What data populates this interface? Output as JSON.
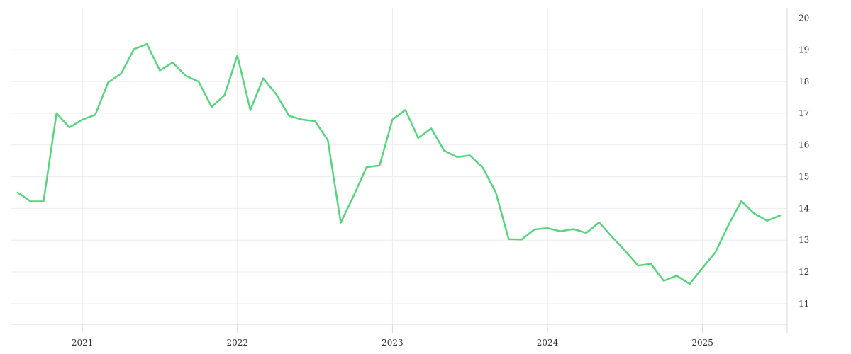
{
  "chart_data": {
    "type": "line",
    "title": "",
    "xlabel": "",
    "ylabel": "",
    "x_ticks": [
      "2021",
      "2022",
      "2023",
      "2024",
      "2025"
    ],
    "y_ticks": [
      11,
      12,
      13,
      14,
      15,
      16,
      17,
      18,
      19,
      20
    ],
    "xlim": [
      "2020-08",
      "2025-07"
    ],
    "ylim": [
      10.35,
      20.3
    ],
    "grid": true,
    "legend": "none",
    "y_axis_side": "right",
    "series": [
      {
        "color": "#55d67c",
        "x": [
          "2020-08",
          "2020-09",
          "2020-10",
          "2020-11",
          "2020-12",
          "2021-01",
          "2021-02",
          "2021-03",
          "2021-04",
          "2021-05",
          "2021-06",
          "2021-07",
          "2021-08",
          "2021-09",
          "2021-10",
          "2021-11",
          "2021-12",
          "2022-01",
          "2022-02",
          "2022-03",
          "2022-04",
          "2022-05",
          "2022-06",
          "2022-07",
          "2022-08",
          "2022-09",
          "2022-10",
          "2022-11",
          "2022-12",
          "2023-01",
          "2023-02",
          "2023-03",
          "2023-04",
          "2023-05",
          "2023-06",
          "2023-07",
          "2023-08",
          "2023-09",
          "2023-10",
          "2023-11",
          "2023-12",
          "2024-01",
          "2024-02",
          "2024-03",
          "2024-04",
          "2024-05",
          "2024-06",
          "2024-07",
          "2024-08",
          "2024-09",
          "2024-10",
          "2024-11",
          "2024-12",
          "2025-01",
          "2025-02",
          "2025-03",
          "2025-04",
          "2025-05",
          "2025-06",
          "2025-07"
        ],
        "y": [
          14.5,
          14.22,
          14.22,
          17.0,
          16.55,
          16.8,
          16.95,
          17.97,
          18.25,
          19.02,
          19.18,
          18.35,
          18.6,
          18.18,
          18.0,
          17.2,
          17.56,
          18.82,
          17.1,
          18.1,
          17.6,
          16.92,
          16.8,
          16.75,
          16.15,
          13.55,
          14.4,
          15.3,
          15.35,
          16.8,
          17.1,
          16.22,
          16.52,
          15.82,
          15.62,
          15.67,
          15.28,
          14.5,
          13.03,
          13.02,
          13.34,
          13.38,
          13.28,
          13.35,
          13.23,
          13.56,
          13.1,
          12.67,
          12.2,
          12.25,
          11.72,
          11.88,
          11.62,
          12.13,
          12.62,
          13.47,
          14.23,
          13.84,
          13.61,
          13.78
        ]
      }
    ]
  }
}
